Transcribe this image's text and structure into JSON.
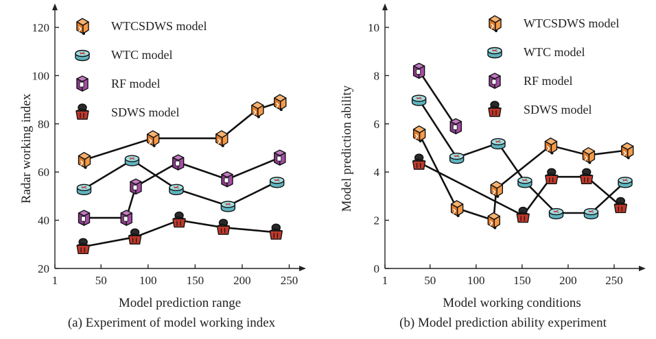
{
  "chart_data": [
    {
      "type": "line",
      "caption": "(a) Experiment of model working index",
      "xlabel": "Model prediction range",
      "ylabel": "Radar working index",
      "xlim": [
        1,
        275
      ],
      "ylim": [
        20,
        125
      ],
      "xticks": [
        1,
        50,
        100,
        150,
        200,
        250
      ],
      "yticks": [
        20,
        40,
        60,
        80,
        100,
        120
      ],
      "legend_position": "top-left",
      "series": [
        {
          "name": "WTCSDWS model",
          "marker": "orange-cube",
          "x": [
            32,
            105,
            178,
            216,
            240
          ],
          "y": [
            65,
            74,
            74,
            86,
            89
          ]
        },
        {
          "name": "WTC model",
          "marker": "teal-cylinder",
          "x": [
            32,
            83,
            130,
            185,
            237
          ],
          "y": [
            53,
            65,
            53,
            46,
            56
          ]
        },
        {
          "name": "RF model",
          "marker": "purple-square",
          "x": [
            32,
            77,
            87,
            132,
            184,
            240
          ],
          "y": [
            41,
            41,
            54,
            64,
            57,
            66
          ]
        },
        {
          "name": "SDWS model",
          "marker": "red-cone",
          "x": [
            31,
            86,
            133,
            180,
            236
          ],
          "y": [
            29,
            33,
            40,
            37,
            35
          ]
        }
      ]
    },
    {
      "type": "line",
      "caption": "(b) Model prediction ability experiment",
      "xlabel": "Model working conditions",
      "ylabel": "Model prediction ability",
      "xlim": [
        1,
        285
      ],
      "ylim": [
        0,
        10.8
      ],
      "xticks": [
        1,
        50,
        100,
        150,
        200,
        250
      ],
      "yticks": [
        0,
        2,
        4,
        6,
        8,
        10
      ],
      "legend_position": "top-right",
      "series": [
        {
          "name": "WTCSDWS model",
          "marker": "orange-cube",
          "x": [
            38,
            79,
            119,
            122,
            181,
            222,
            264
          ],
          "y": [
            5.6,
            2.5,
            2.0,
            3.3,
            5.1,
            4.7,
            4.9
          ]
        },
        {
          "name": "WTC model",
          "marker": "teal-cylinder",
          "x": [
            38,
            79,
            124,
            153,
            187,
            225,
            262
          ],
          "y": [
            7.0,
            4.6,
            5.2,
            3.6,
            2.3,
            2.3,
            3.6
          ]
        },
        {
          "name": "RF model",
          "marker": "purple-square",
          "x": [
            38,
            78
          ],
          "y": [
            8.2,
            5.9
          ]
        },
        {
          "name": "SDWS model",
          "marker": "red-cone",
          "x": [
            38,
            151,
            182,
            220,
            257
          ],
          "y": [
            4.4,
            2.2,
            3.8,
            3.8,
            2.6
          ]
        }
      ]
    }
  ],
  "colors": {
    "orange-cube": "#f28c3a",
    "teal-cylinder": "#7fcfd6",
    "purple-square": "#a64ca6",
    "red-cone": "#c0392b"
  }
}
